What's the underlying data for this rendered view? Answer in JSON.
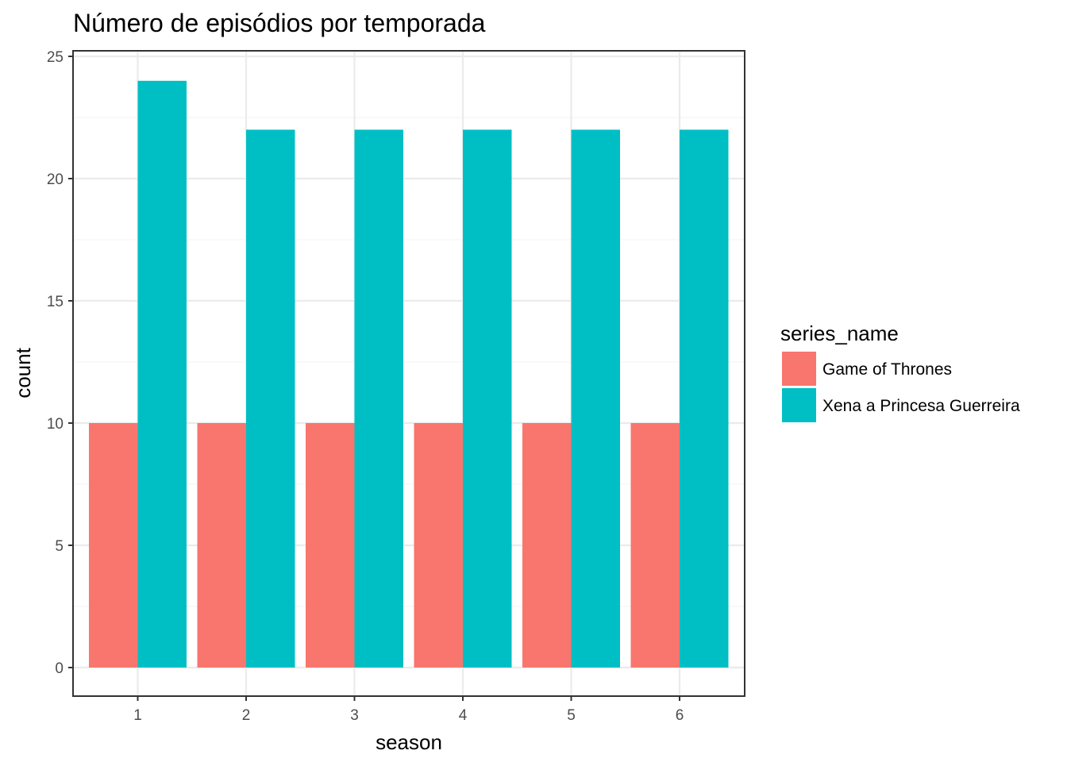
{
  "chart_data": {
    "type": "bar",
    "title": "Número de episódios por temporada",
    "xlabel": "season",
    "ylabel": "count",
    "categories": [
      "1",
      "2",
      "3",
      "4",
      "5",
      "6"
    ],
    "series": [
      {
        "name": "Game of Thrones",
        "values": [
          10,
          10,
          10,
          10,
          10,
          10
        ],
        "color": "#F8766D"
      },
      {
        "name": "Xena a Princesa Guerreira",
        "values": [
          24,
          22,
          22,
          22,
          22,
          22
        ],
        "color": "#00BFC4"
      }
    ],
    "ylim": [
      0,
      25
    ],
    "yticks": [
      "0",
      "5",
      "10",
      "15",
      "20",
      "25"
    ],
    "grid": true,
    "legend": {
      "title": "series_name",
      "position": "right"
    }
  }
}
